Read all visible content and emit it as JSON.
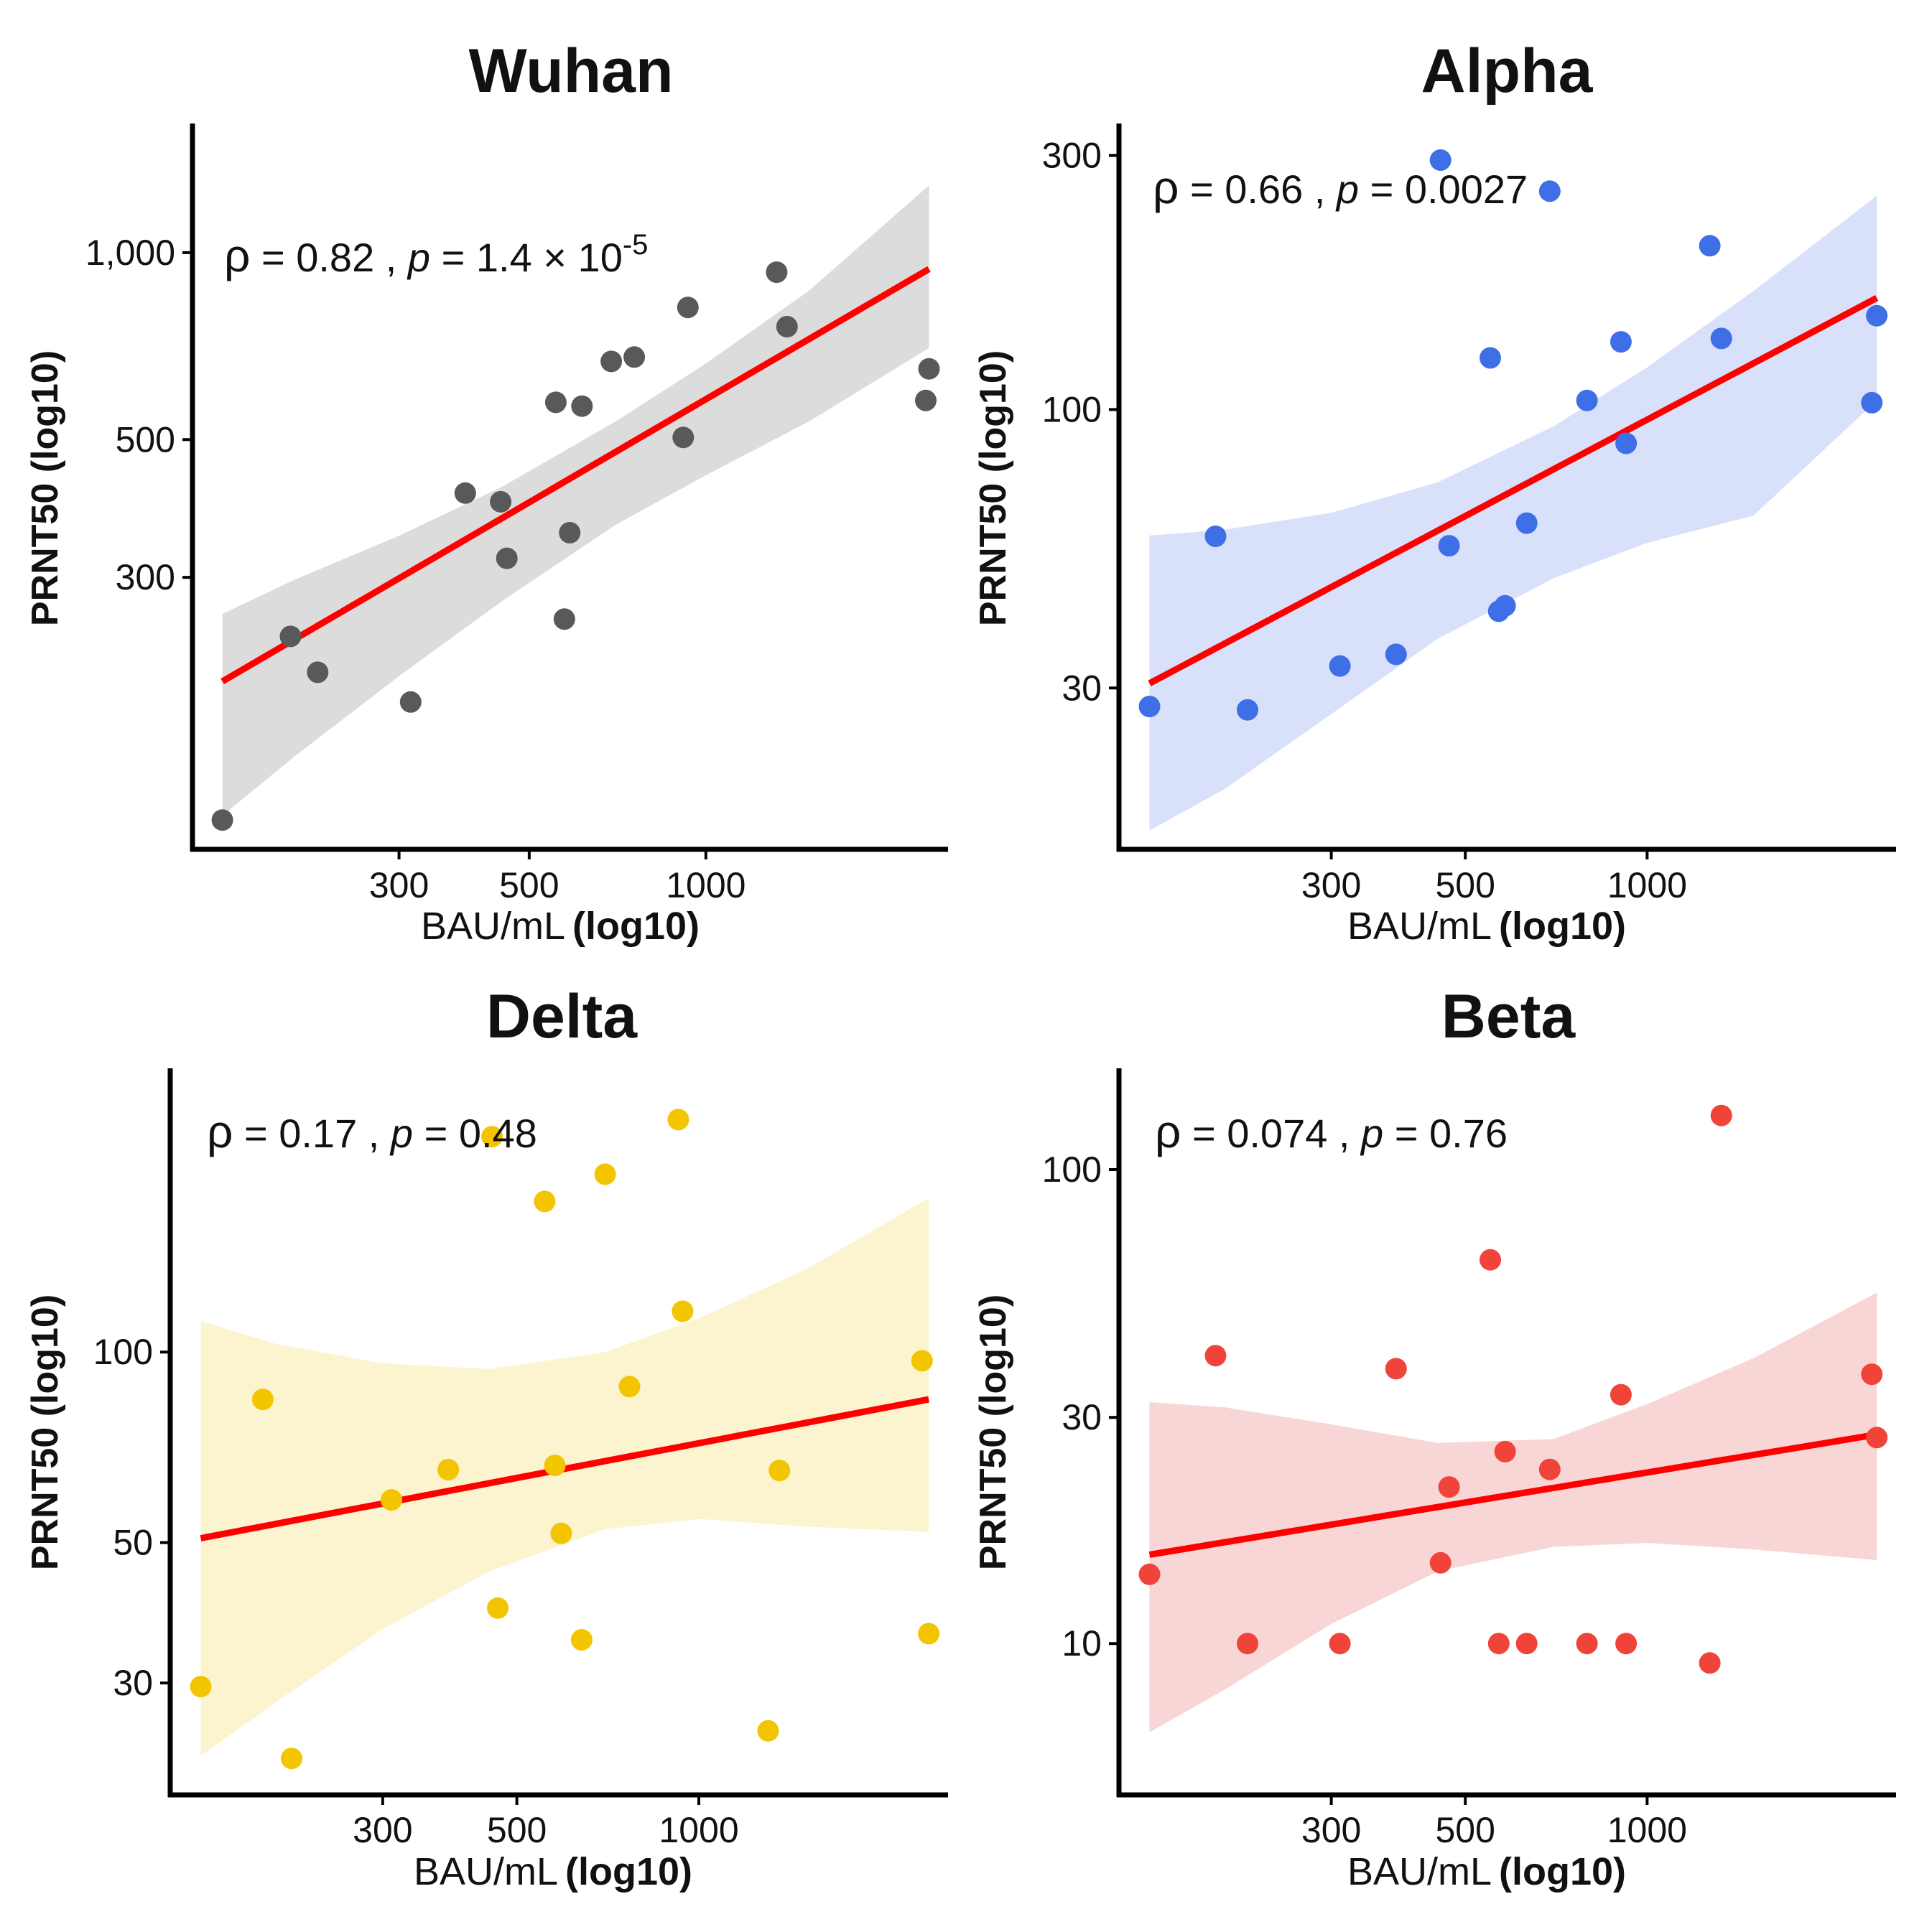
{
  "chart_data": [
    {
      "type": "scatter",
      "title": "Wuhan",
      "xlabel_main": "BAU/mL",
      "xlabel_bold": "(log10)",
      "ylabel": "PRNT50 (log10)",
      "xscale": "log10",
      "yscale": "log10",
      "xlim": [
        138,
        2500
      ],
      "ylim": [
        113,
        1580
      ],
      "x_ticks": [
        {
          "v": 300,
          "label": "300"
        },
        {
          "v": 500,
          "label": "500"
        },
        {
          "v": 1000,
          "label": "1000"
        }
      ],
      "y_ticks": [
        {
          "v": 300,
          "label": "300"
        },
        {
          "v": 500,
          "label": "500"
        },
        {
          "v": 1000,
          "label": "1,000"
        }
      ],
      "stat": {
        "rho_sym": "ρ",
        "rho_text": " = 0.82 , ",
        "p_sym": "p",
        "p_text": " = 1.4 × 10",
        "p_exp": "-5"
      },
      "colors": {
        "point": "#595959",
        "band": "#dcdcdc",
        "line": "#ff0000"
      },
      "fit": {
        "x": [
          150,
          2400
        ],
        "y": [
          204,
          941
        ]
      },
      "band": {
        "x": [
          150,
          200,
          300,
          450,
          700,
          1000,
          1500,
          2400
        ],
        "upper": [
          262,
          298,
          350,
          420,
          534,
          663,
          869,
          1283
        ],
        "lower": [
          124,
          155,
          208,
          275,
          364,
          438,
          535,
          702
        ]
      },
      "points": [
        {
          "x": 150,
          "y": 122
        },
        {
          "x": 196,
          "y": 241
        },
        {
          "x": 218,
          "y": 211
        },
        {
          "x": 314,
          "y": 189
        },
        {
          "x": 389,
          "y": 410
        },
        {
          "x": 447,
          "y": 397
        },
        {
          "x": 458,
          "y": 322
        },
        {
          "x": 555,
          "y": 574
        },
        {
          "x": 574,
          "y": 257
        },
        {
          "x": 586,
          "y": 354
        },
        {
          "x": 615,
          "y": 566
        },
        {
          "x": 690,
          "y": 668
        },
        {
          "x": 755,
          "y": 679
        },
        {
          "x": 915,
          "y": 504
        },
        {
          "x": 932,
          "y": 816
        },
        {
          "x": 1320,
          "y": 930
        },
        {
          "x": 1375,
          "y": 760
        },
        {
          "x": 2370,
          "y": 578
        },
        {
          "x": 2400,
          "y": 650
        }
      ]
    },
    {
      "type": "scatter",
      "title": "Alpha",
      "xlabel_main": "BAU/mL",
      "xlabel_bold": "(log10)",
      "ylabel": "PRNT50 (log10)",
      "xscale": "log10",
      "yscale": "log10",
      "xlim": [
        138,
        2500
      ],
      "ylim": [
        15.5,
        336
      ],
      "x_ticks": [
        {
          "v": 300,
          "label": "300"
        },
        {
          "v": 500,
          "label": "500"
        },
        {
          "v": 1000,
          "label": "1000"
        }
      ],
      "y_ticks": [
        {
          "v": 30,
          "label": "30"
        },
        {
          "v": 100,
          "label": "100"
        },
        {
          "v": 300,
          "label": "300"
        }
      ],
      "stat": {
        "rho_sym": "ρ",
        "rho_text": " = 0.66 , ",
        "p_sym": "p",
        "p_text": " = 0.0027",
        "p_exp": ""
      },
      "colors": {
        "point": "#3f6fe6",
        "band": "#d9e1fa",
        "line": "#ff0000"
      },
      "fit": {
        "x": [
          150,
          2400
        ],
        "y": [
          30.6,
          162
        ]
      },
      "band": {
        "x": [
          150,
          200,
          300,
          450,
          700,
          1000,
          1500,
          2400
        ],
        "upper": [
          58.0,
          59.5,
          64.0,
          73.0,
          93.0,
          120,
          167,
          252
        ],
        "lower": [
          16.2,
          19.4,
          26.8,
          37.1,
          48.2,
          56.2,
          63.2,
          104
        ]
      },
      "points": [
        {
          "x": 150,
          "y": 27.7
        },
        {
          "x": 193,
          "y": 57.8
        },
        {
          "x": 218,
          "y": 27.3
        },
        {
          "x": 310,
          "y": 33.0
        },
        {
          "x": 384,
          "y": 34.7
        },
        {
          "x": 455,
          "y": 294
        },
        {
          "x": 470,
          "y": 55.5
        },
        {
          "x": 550,
          "y": 125
        },
        {
          "x": 568,
          "y": 41.8
        },
        {
          "x": 582,
          "y": 42.8
        },
        {
          "x": 632,
          "y": 61.2
        },
        {
          "x": 690,
          "y": 257
        },
        {
          "x": 795,
          "y": 104
        },
        {
          "x": 905,
          "y": 134
        },
        {
          "x": 923,
          "y": 86.4
        },
        {
          "x": 1270,
          "y": 203
        },
        {
          "x": 1327,
          "y": 136
        },
        {
          "x": 2355,
          "y": 103
        },
        {
          "x": 2400,
          "y": 150
        }
      ]
    },
    {
      "type": "scatter",
      "title": "Delta",
      "xlabel_main": "BAU/mL",
      "xlabel_bold": "(log10)",
      "ylabel": "PRNT50 (log10)",
      "xscale": "log10",
      "yscale": "log10",
      "xlim": [
        138,
        2500
      ],
      "ylim": [
        20.6,
        275
      ],
      "x_ticks": [
        {
          "v": 300,
          "label": "300"
        },
        {
          "v": 500,
          "label": "500"
        },
        {
          "v": 1000,
          "label": "1000"
        }
      ],
      "y_ticks": [
        {
          "v": 30,
          "label": "30"
        },
        {
          "v": 50,
          "label": "50"
        },
        {
          "v": 100,
          "label": "100"
        }
      ],
      "stat": {
        "rho_sym": "ρ",
        "rho_text": " = 0.17 , ",
        "p_sym": "p",
        "p_text": " = 0.48",
        "p_exp": ""
      },
      "colors": {
        "point": "#f2c500",
        "band": "#fcf3cf",
        "line": "#ff0000"
      },
      "fit": {
        "x": [
          150,
          2400
        ],
        "y": [
          50.8,
          84.2
        ]
      },
      "band": {
        "x": [
          150,
          200,
          300,
          450,
          700,
          1000,
          1500,
          2400
        ],
        "upper": [
          112,
          103,
          96,
          94,
          100,
          113,
          135,
          175
        ],
        "lower": [
          23.0,
          28.0,
          36.5,
          45.0,
          52.5,
          54.5,
          53.0,
          52.0
        ]
      },
      "points": [
        {
          "x": 150,
          "y": 29.6
        },
        {
          "x": 190,
          "y": 84.2
        },
        {
          "x": 212,
          "y": 22.8
        },
        {
          "x": 310,
          "y": 58.4
        },
        {
          "x": 385,
          "y": 65.2
        },
        {
          "x": 455,
          "y": 219
        },
        {
          "x": 465,
          "y": 39.4
        },
        {
          "x": 556,
          "y": 173
        },
        {
          "x": 578,
          "y": 66.2
        },
        {
          "x": 592,
          "y": 51.7
        },
        {
          "x": 640,
          "y": 35.1
        },
        {
          "x": 700,
          "y": 191
        },
        {
          "x": 768,
          "y": 88.2
        },
        {
          "x": 925,
          "y": 233
        },
        {
          "x": 940,
          "y": 116
        },
        {
          "x": 1302,
          "y": 25.2
        },
        {
          "x": 1359,
          "y": 65.0
        },
        {
          "x": 2340,
          "y": 96.9
        },
        {
          "x": 2400,
          "y": 35.9
        }
      ]
    },
    {
      "type": "scatter",
      "title": "Beta",
      "xlabel_main": "BAU/mL",
      "xlabel_bold": "(log10)",
      "ylabel": "PRNT50 (log10)",
      "xscale": "log10",
      "yscale": "log10",
      "xlim": [
        138,
        2500
      ],
      "ylim": [
        5.0,
        159
      ],
      "x_ticks": [
        {
          "v": 300,
          "label": "300"
        },
        {
          "v": 500,
          "label": "500"
        },
        {
          "v": 1000,
          "label": "1000"
        }
      ],
      "y_ticks": [
        {
          "v": 10,
          "label": "10"
        },
        {
          "v": 30,
          "label": "30"
        },
        {
          "v": 100,
          "label": "100"
        }
      ],
      "stat": {
        "rho_sym": "ρ",
        "rho_text": " = 0.074 , ",
        "p_sym": "p",
        "p_text": " = 0.76",
        "p_exp": ""
      },
      "colors": {
        "point": "#f0443a",
        "band": "#f9d6d6",
        "line": "#ff0000"
      },
      "fit": {
        "x": [
          150,
          2400
        ],
        "y": [
          15.4,
          27.6
        ]
      },
      "band": {
        "x": [
          150,
          200,
          300,
          450,
          700,
          1000,
          1500,
          2400
        ],
        "upper": [
          32.3,
          31.5,
          29.0,
          26.5,
          27.0,
          32.0,
          40.0,
          55.0
        ],
        "lower": [
          6.5,
          8.0,
          11.0,
          14.2,
          16.0,
          16.3,
          15.8,
          15.0
        ]
      },
      "points": [
        {
          "x": 150,
          "y": 14.0
        },
        {
          "x": 193,
          "y": 40.5
        },
        {
          "x": 218,
          "y": 10.0
        },
        {
          "x": 310,
          "y": 10.0
        },
        {
          "x": 384,
          "y": 38.0
        },
        {
          "x": 455,
          "y": 14.8
        },
        {
          "x": 470,
          "y": 21.4
        },
        {
          "x": 550,
          "y": 64.5
        },
        {
          "x": 568,
          "y": 10.0
        },
        {
          "x": 582,
          "y": 25.4
        },
        {
          "x": 632,
          "y": 10.0
        },
        {
          "x": 690,
          "y": 23.3
        },
        {
          "x": 795,
          "y": 10.0
        },
        {
          "x": 905,
          "y": 33.5
        },
        {
          "x": 923,
          "y": 10.0
        },
        {
          "x": 1270,
          "y": 9.1
        },
        {
          "x": 1327,
          "y": 130
        },
        {
          "x": 2355,
          "y": 37.0
        },
        {
          "x": 2400,
          "y": 27.2
        }
      ]
    }
  ]
}
